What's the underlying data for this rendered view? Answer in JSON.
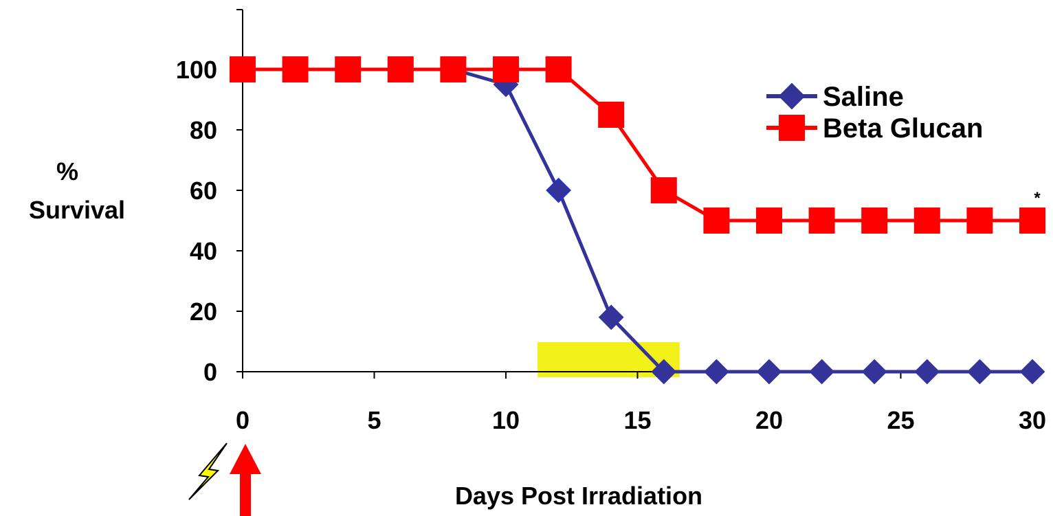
{
  "chart_data": {
    "type": "line",
    "title": "",
    "xlabel": "Days Post Irradiation",
    "ylabel": [
      "%",
      "Survival"
    ],
    "xlim": [
      0,
      30
    ],
    "ylim": [
      0,
      100
    ],
    "x_ticks": [
      0,
      5,
      10,
      15,
      20,
      25,
      30
    ],
    "y_ticks": [
      0,
      20,
      40,
      60,
      80,
      100
    ],
    "grid": false,
    "legend_position": "top-right",
    "series": [
      {
        "name": "Saline",
        "color": "#333399",
        "marker": "diamond",
        "x": [
          0,
          2,
          4,
          6,
          8,
          10,
          12,
          14,
          16,
          18,
          20,
          22,
          24,
          26,
          28,
          30
        ],
        "values": [
          100,
          100,
          100,
          100,
          100,
          95,
          60,
          18,
          0,
          0,
          0,
          0,
          0,
          0,
          0,
          0
        ]
      },
      {
        "name": "Beta Glucan",
        "color": "#ff0000",
        "marker": "square",
        "x": [
          0,
          2,
          4,
          6,
          8,
          10,
          12,
          14,
          16,
          18,
          20,
          22,
          24,
          26,
          28,
          30
        ],
        "values": [
          100,
          100,
          100,
          100,
          100,
          100,
          100,
          85,
          60,
          50,
          50,
          50,
          50,
          50,
          50,
          50
        ]
      }
    ],
    "highlight_region": {
      "x": [
        11.2,
        16.6
      ],
      "color": "#f2f21a"
    },
    "annotation": {
      "text": "*",
      "x": 30,
      "y": 60
    },
    "irradiation_icon": "lightning-bolt-icon",
    "treatment_icon": "red-up-arrow-icon"
  }
}
